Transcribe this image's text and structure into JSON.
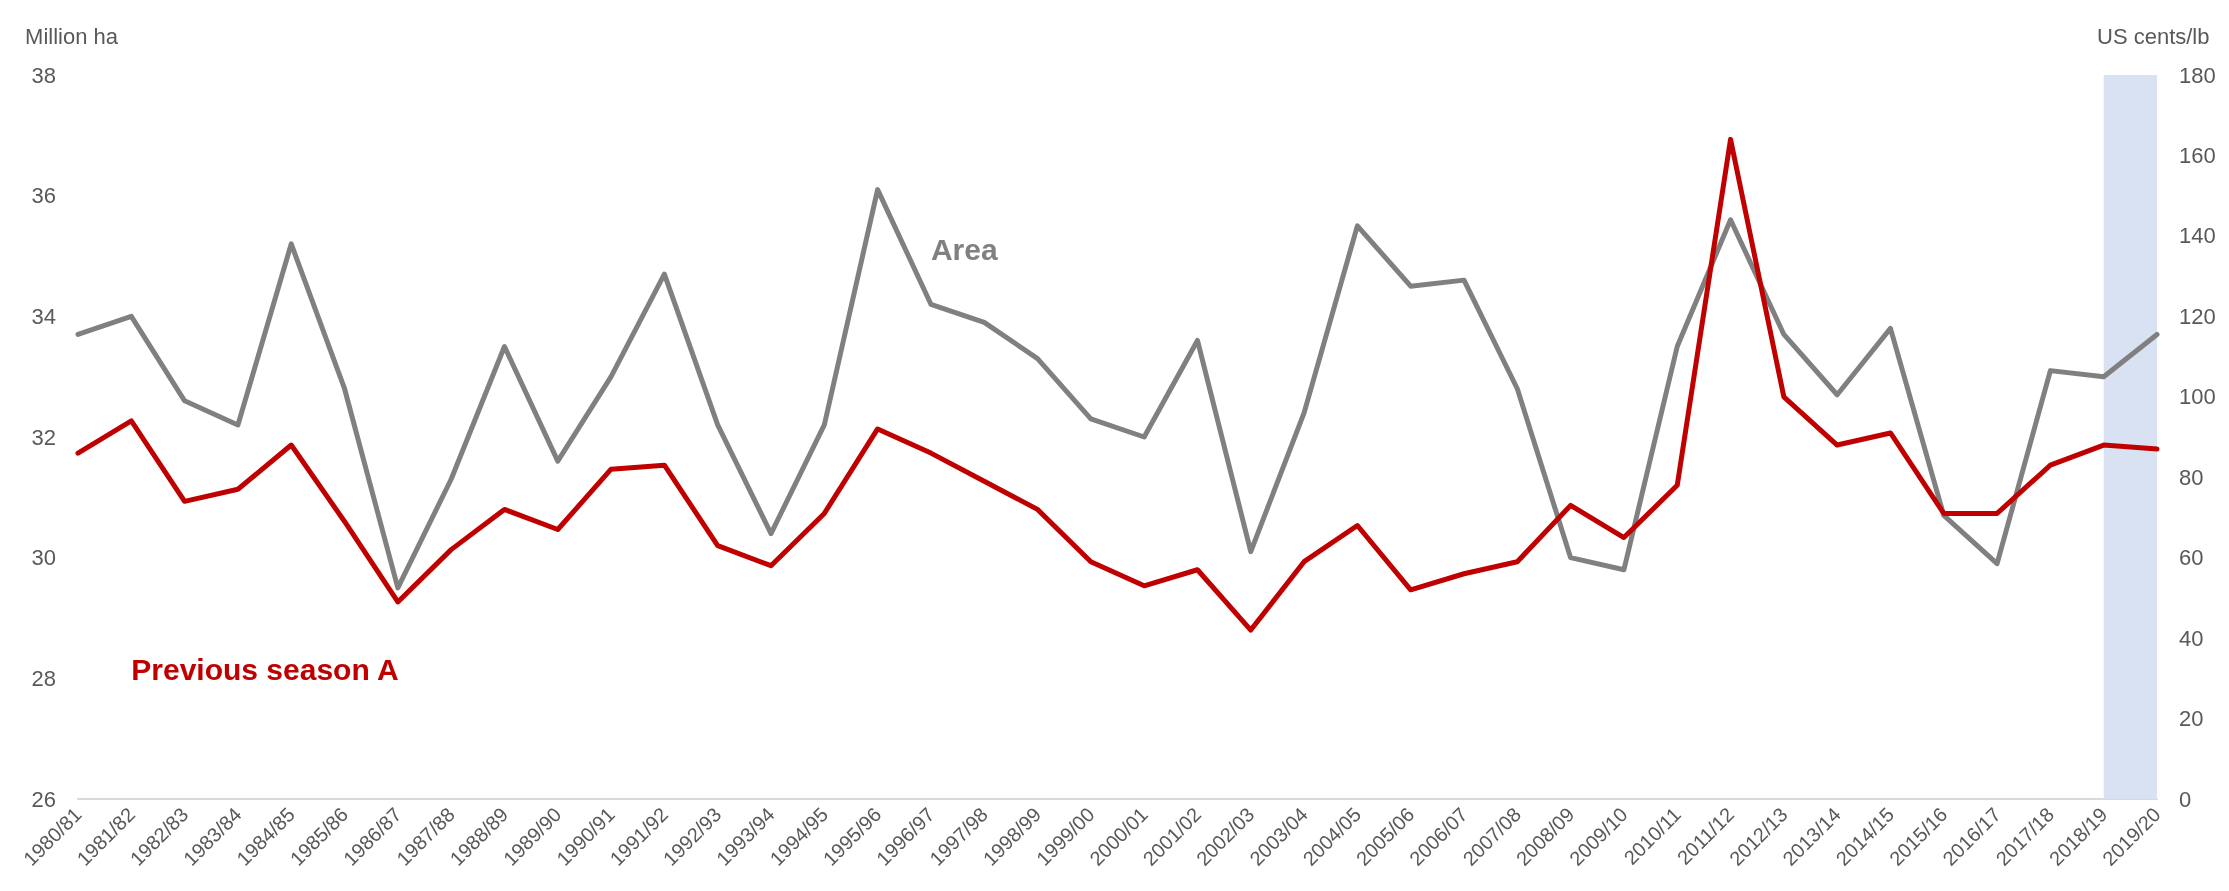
{
  "chart_data": {
    "type": "line",
    "ylabel": "Million ha",
    "y2label": "US cents/lb",
    "categories": [
      "1980/81",
      "1981/82",
      "1982/83",
      "1983/84",
      "1984/85",
      "1985/86",
      "1986/87",
      "1987/88",
      "1988/89",
      "1989/90",
      "1990/91",
      "1991/92",
      "1992/93",
      "1993/94",
      "1994/95",
      "1995/96",
      "1996/97",
      "1997/98",
      "1998/99",
      "1999/00",
      "2000/01",
      "2001/02",
      "2002/03",
      "2003/04",
      "2004/05",
      "2005/06",
      "2006/07",
      "2007/08",
      "2008/09",
      "2009/10",
      "2010/11",
      "2011/12",
      "2012/13",
      "2013/14",
      "2014/15",
      "2015/16",
      "2016/17",
      "2017/18",
      "2018/19",
      "2019/20"
    ],
    "series": [
      {
        "name": "Area",
        "color": "#808080",
        "values": [
          33.7,
          34.0,
          32.6,
          32.2,
          35.2,
          32.8,
          29.5,
          31.3,
          33.5,
          31.6,
          33.0,
          34.7,
          32.2,
          30.4,
          32.2,
          36.1,
          34.2,
          33.9,
          33.3,
          32.3,
          32.0,
          33.6,
          30.1,
          32.4,
          35.5,
          34.5,
          34.6,
          32.8,
          30.0,
          29.8,
          33.5,
          35.6,
          33.7,
          32.7,
          33.8,
          30.7,
          29.9,
          33.1,
          33.0,
          33.7
        ]
      },
      {
        "name": "Previous season A",
        "color": "#c00000",
        "axis": "y2",
        "values": [
          86,
          94,
          74,
          77,
          88,
          69,
          49,
          62,
          72,
          67,
          82,
          83,
          63,
          58,
          71,
          92,
          86,
          79,
          72,
          59,
          53,
          57,
          42,
          59,
          68,
          52,
          56,
          59,
          73,
          65,
          78,
          164,
          100,
          88,
          91,
          71,
          71,
          83,
          88,
          87
        ]
      }
    ],
    "ylim": [
      26,
      38
    ],
    "yticks": [
      26,
      28,
      30,
      32,
      34,
      36,
      38
    ],
    "y2lim": [
      0,
      180
    ],
    "y2ticks": [
      0,
      20,
      40,
      60,
      80,
      100,
      120,
      140,
      160,
      180
    ],
    "bands": [
      {
        "axis": "x",
        "from": "2018/19",
        "to": "2019/20",
        "color": "#d9e2f3"
      }
    ],
    "grid": false,
    "legend": false,
    "marker": "none",
    "line_style": "solid"
  }
}
